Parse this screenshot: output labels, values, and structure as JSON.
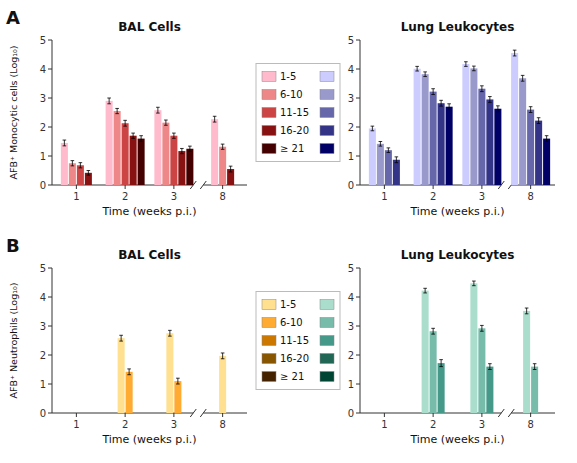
{
  "chart_data": [
    {
      "type": "bar",
      "title": "BAL Cells",
      "x_label": "Time (weeks p.i.)",
      "y_label": "AFB⁺ Monocytic cells (Log₁₀)",
      "annotations": [
        "A"
      ],
      "legend": "right",
      "categories": [
        "1",
        "2",
        "3",
        "8"
      ],
      "ylim": [
        0,
        5
      ],
      "yticks": [
        0,
        1,
        2,
        3,
        4,
        5
      ],
      "series": [
        {
          "name": "1-5",
          "color": "#FFBBCC",
          "values": [
            1.45,
            2.9,
            2.58,
            2.27
          ],
          "errors": [
            0.1,
            0.1,
            0.1,
            0.1
          ]
        },
        {
          "name": "6-10",
          "color": "#EE8888",
          "values": [
            0.75,
            2.55,
            2.15,
            1.32
          ],
          "errors": [
            0.09,
            0.09,
            0.09,
            0.09
          ]
        },
        {
          "name": "11-15",
          "color": "#CC4444",
          "values": [
            0.68,
            2.13,
            1.7,
            null
          ],
          "errors": [
            0.09,
            0.1,
            0.09,
            null
          ]
        },
        {
          "name": "16-20",
          "color": "#881111",
          "values": [
            0.42,
            1.7,
            1.17,
            0.55
          ],
          "errors": [
            0.08,
            0.09,
            0.09,
            0.1
          ]
        },
        {
          "name": "≥ 21",
          "color": "#440000",
          "values": [
            null,
            1.6,
            1.25,
            null
          ],
          "errors": [
            null,
            0.1,
            0.09,
            null
          ]
        }
      ]
    },
    {
      "type": "bar",
      "title": "Lung Leukocytes",
      "x_label": "Time (weeks p.i.)",
      "legend": "left",
      "categories": [
        "1",
        "2",
        "3",
        "8"
      ],
      "ylim": [
        0,
        5
      ],
      "yticks": [
        0,
        1,
        2,
        3,
        4,
        5
      ],
      "series": [
        {
          "name": "1-5",
          "color": "#CCCCFF",
          "values": [
            1.95,
            4.01,
            4.17,
            4.55
          ],
          "errors": [
            0.08,
            0.08,
            0.08,
            0.1
          ]
        },
        {
          "name": "6-10",
          "color": "#9999CC",
          "values": [
            1.42,
            3.82,
            4.02,
            3.68
          ],
          "errors": [
            0.08,
            0.08,
            0.08,
            0.1
          ]
        },
        {
          "name": "11-15",
          "color": "#6666AA",
          "values": [
            1.2,
            3.22,
            3.32,
            2.6
          ],
          "errors": [
            0.08,
            0.1,
            0.1,
            0.1
          ]
        },
        {
          "name": "16-20",
          "color": "#333388",
          "values": [
            0.87,
            2.82,
            2.95,
            2.22
          ],
          "errors": [
            0.1,
            0.1,
            0.1,
            0.1
          ]
        },
        {
          "name": "≥ 21",
          "color": "#000066",
          "values": [
            null,
            2.7,
            2.63,
            1.6
          ],
          "errors": [
            null,
            0.1,
            0.1,
            0.1
          ]
        }
      ]
    },
    {
      "type": "bar",
      "title": "BAL Cells",
      "x_label": "Time (weeks p.i.)",
      "y_label": "AFB⁺ Neutrophils (Log₁₀)",
      "annotations": [
        "B"
      ],
      "legend": "right",
      "categories": [
        "1",
        "2",
        "3",
        "8"
      ],
      "ylim": [
        0,
        5
      ],
      "yticks": [
        0,
        1,
        2,
        3,
        4,
        5
      ],
      "series": [
        {
          "name": "1-5",
          "color": "#FFE090",
          "values": [
            null,
            2.58,
            2.75,
            1.97
          ],
          "errors": [
            null,
            0.1,
            0.1,
            0.1
          ]
        },
        {
          "name": "6-10",
          "color": "#FFAA30",
          "values": [
            null,
            1.42,
            1.1,
            null
          ],
          "errors": [
            null,
            0.1,
            0.1,
            null
          ]
        },
        {
          "name": "11-15",
          "color": "#CC7700",
          "values": [
            null,
            null,
            null,
            null
          ],
          "errors": [
            null,
            null,
            null,
            null
          ]
        },
        {
          "name": "16-20",
          "color": "#885500",
          "values": [
            null,
            null,
            null,
            null
          ],
          "errors": [
            null,
            null,
            null,
            null
          ]
        },
        {
          "name": "≥ 21",
          "color": "#442200",
          "values": [
            null,
            null,
            null,
            null
          ],
          "errors": [
            null,
            null,
            null,
            null
          ]
        }
      ]
    },
    {
      "type": "bar",
      "title": "Lung Leukocytes",
      "x_label": "Time (weeks p.i.)",
      "legend": "left",
      "categories": [
        "1",
        "2",
        "3",
        "8"
      ],
      "ylim": [
        0,
        5
      ],
      "yticks": [
        0,
        1,
        2,
        3,
        4,
        5
      ],
      "series": [
        {
          "name": "1-5",
          "color": "#AADDCC",
          "values": [
            null,
            4.22,
            4.47,
            3.52
          ],
          "errors": [
            null,
            0.08,
            0.08,
            0.1
          ]
        },
        {
          "name": "6-10",
          "color": "#77BBAA",
          "values": [
            null,
            2.82,
            2.92,
            1.6
          ],
          "errors": [
            null,
            0.1,
            0.1,
            0.1
          ]
        },
        {
          "name": "11-15",
          "color": "#449988",
          "values": [
            null,
            1.72,
            1.6,
            null
          ],
          "errors": [
            null,
            0.12,
            0.1,
            null
          ]
        },
        {
          "name": "16-20",
          "color": "#226655",
          "values": [
            null,
            null,
            null,
            null
          ],
          "errors": [
            null,
            null,
            null,
            null
          ]
        },
        {
          "name": "≥ 21",
          "color": "#004433",
          "values": [
            null,
            null,
            null,
            null
          ],
          "errors": [
            null,
            null,
            null,
            null
          ]
        }
      ]
    }
  ]
}
